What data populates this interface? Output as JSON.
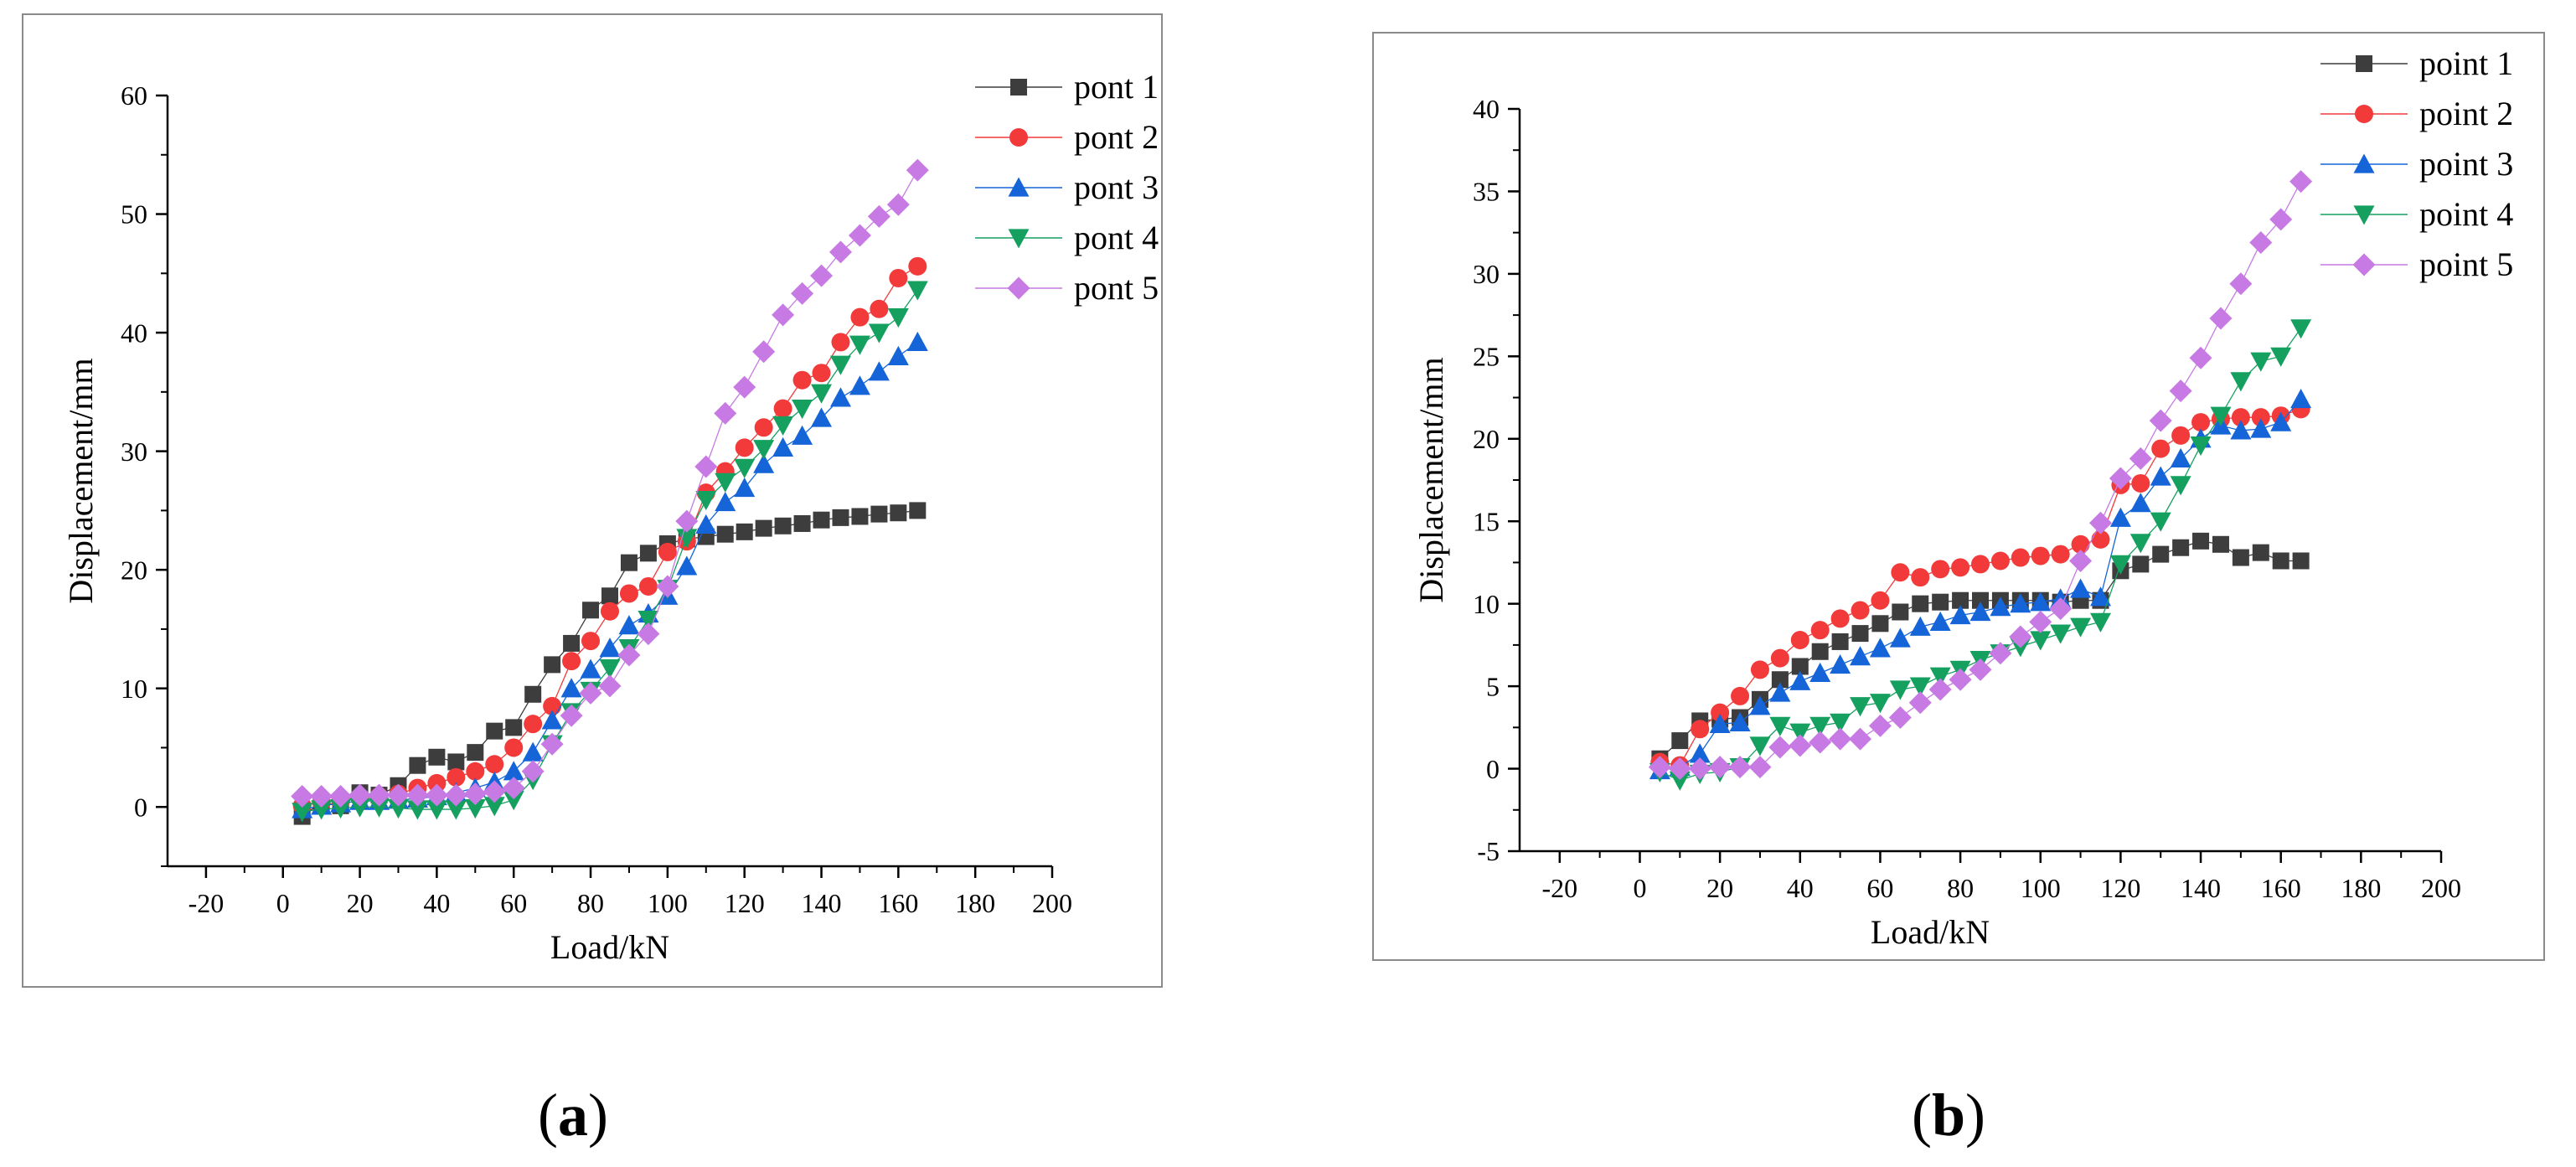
{
  "captions": {
    "a_open": "(",
    "a_letter": "a",
    "a_close": ")",
    "b_open": "(",
    "b_letter": "b",
    "b_close": ")"
  },
  "colors": {
    "point1": "#3d3d3d",
    "point2": "#f23a3a",
    "point3": "#1565d8",
    "point4": "#15a060",
    "point5": "#c77ae3"
  },
  "chart_data": [
    {
      "type": "scatter",
      "id": "a",
      "title": "",
      "xlabel": "Load/kN",
      "ylabel": "Displacement/mm",
      "xlim": [
        -30,
        200
      ],
      "ylim": [
        -5,
        60
      ],
      "xticks": [
        -20,
        0,
        20,
        40,
        60,
        80,
        100,
        120,
        140,
        160,
        180,
        200
      ],
      "yticks": [
        0,
        10,
        20,
        30,
        40,
        50,
        60
      ],
      "legend_position": "top-right",
      "x": [
        5,
        10,
        15,
        20,
        25,
        30,
        35,
        40,
        45,
        50,
        55,
        60,
        65,
        70,
        75,
        80,
        85,
        90,
        95,
        100,
        105,
        110,
        115,
        120,
        125,
        130,
        135,
        140,
        145,
        150,
        155,
        160,
        165
      ],
      "series": [
        {
          "name": "pont 1",
          "marker": "square",
          "values": [
            -0.8,
            0.4,
            0.1,
            1.2,
            1.0,
            1.8,
            3.5,
            4.2,
            3.8,
            4.6,
            6.4,
            6.7,
            9.5,
            12.0,
            13.8,
            16.6,
            17.8,
            20.6,
            21.4,
            22.2,
            22.6,
            22.8,
            23.0,
            23.2,
            23.5,
            23.7,
            23.9,
            24.2,
            24.4,
            24.5,
            24.7,
            24.8,
            25.0
          ]
        },
        {
          "name": "pont 2",
          "marker": "circle",
          "values": [
            0.1,
            0.4,
            0.5,
            0.8,
            0.9,
            1.1,
            1.6,
            2.0,
            2.5,
            3.0,
            3.6,
            5.0,
            7.0,
            8.5,
            12.3,
            14.0,
            16.5,
            18.0,
            18.6,
            21.5,
            22.4,
            26.5,
            28.3,
            30.3,
            32.0,
            33.6,
            36.0,
            36.6,
            39.2,
            41.3,
            42.0,
            44.6,
            45.6
          ]
        },
        {
          "name": "pont 3",
          "marker": "triangle-up",
          "values": [
            -0.2,
            0.1,
            0.3,
            0.5,
            0.5,
            0.6,
            0.7,
            0.9,
            1.2,
            1.6,
            2.1,
            3.0,
            4.6,
            7.3,
            10.0,
            11.6,
            13.4,
            15.3,
            16.3,
            17.8,
            20.3,
            23.8,
            25.7,
            26.9,
            28.9,
            30.3,
            31.3,
            32.8,
            34.5,
            35.5,
            36.7,
            38.0,
            39.2
          ]
        },
        {
          "name": "pont 4",
          "marker": "triangle-down",
          "values": [
            -0.4,
            -0.2,
            -0.1,
            0.0,
            0.0,
            -0.1,
            -0.2,
            -0.2,
            -0.2,
            -0.1,
            0.1,
            0.6,
            2.3,
            5.3,
            8.0,
            9.8,
            11.7,
            13.4,
            15.8,
            18.4,
            22.7,
            25.9,
            27.4,
            28.6,
            30.2,
            32.2,
            33.6,
            34.9,
            37.3,
            39.0,
            40.0,
            41.3,
            43.6
          ]
        },
        {
          "name": "pont 5",
          "marker": "diamond",
          "values": [
            0.9,
            0.9,
            0.9,
            1.0,
            1.0,
            1.0,
            1.0,
            1.0,
            1.0,
            1.1,
            1.3,
            1.6,
            3.0,
            5.3,
            7.7,
            9.6,
            10.2,
            12.8,
            14.6,
            18.6,
            24.1,
            28.7,
            33.2,
            35.4,
            38.4,
            41.5,
            43.3,
            44.8,
            46.8,
            48.2,
            49.8,
            50.8,
            53.7
          ]
        }
      ]
    },
    {
      "type": "scatter",
      "id": "b",
      "title": "",
      "xlabel": "Load/kN",
      "ylabel": "Displacement/mm",
      "xlim": [
        -30,
        200
      ],
      "ylim": [
        -5,
        40
      ],
      "xticks": [
        -20,
        0,
        20,
        40,
        60,
        80,
        100,
        120,
        140,
        160,
        180,
        200
      ],
      "yticks": [
        -5,
        0,
        5,
        10,
        15,
        20,
        25,
        30,
        35,
        40
      ],
      "legend_position": "top-right",
      "x": [
        5,
        10,
        15,
        20,
        25,
        30,
        35,
        40,
        45,
        50,
        55,
        60,
        65,
        70,
        75,
        80,
        85,
        90,
        95,
        100,
        105,
        110,
        115,
        120,
        125,
        130,
        135,
        140,
        145,
        150,
        155,
        160,
        165
      ],
      "series": [
        {
          "name": "point 1",
          "marker": "square",
          "values": [
            0.6,
            1.7,
            2.9,
            3.0,
            3.1,
            4.2,
            5.4,
            6.2,
            7.1,
            7.7,
            8.2,
            8.8,
            9.5,
            10.0,
            10.1,
            10.2,
            10.2,
            10.2,
            10.2,
            10.2,
            10.1,
            10.2,
            10.2,
            12.0,
            12.4,
            13.0,
            13.4,
            13.8,
            13.6,
            12.8,
            13.1,
            12.6,
            12.6
          ]
        },
        {
          "name": "point 2",
          "marker": "circle",
          "values": [
            0.4,
            0.2,
            2.4,
            3.4,
            4.4,
            6.0,
            6.7,
            7.8,
            8.4,
            9.1,
            9.6,
            10.2,
            11.9,
            11.6,
            12.1,
            12.2,
            12.4,
            12.6,
            12.8,
            12.9,
            13.0,
            13.6,
            13.9,
            17.2,
            17.3,
            19.4,
            20.2,
            21.0,
            21.2,
            21.3,
            21.3,
            21.4,
            21.8
          ]
        },
        {
          "name": "point 3",
          "marker": "triangle-up",
          "values": [
            -0.1,
            0.1,
            0.9,
            2.7,
            2.8,
            3.8,
            4.6,
            5.3,
            5.8,
            6.3,
            6.8,
            7.3,
            7.9,
            8.6,
            8.9,
            9.3,
            9.5,
            9.8,
            10.0,
            10.1,
            10.3,
            10.9,
            10.4,
            15.2,
            16.1,
            17.7,
            18.8,
            20.0,
            20.8,
            20.5,
            20.6,
            21.0,
            22.4
          ]
        },
        {
          "name": "point 4",
          "marker": "triangle-down",
          "values": [
            -0.2,
            -0.7,
            -0.3,
            -0.2,
            0.1,
            1.4,
            2.6,
            2.2,
            2.6,
            2.8,
            3.8,
            4.0,
            4.8,
            5.0,
            5.6,
            6.0,
            6.6,
            7.0,
            7.4,
            7.8,
            8.2,
            8.6,
            8.9,
            12.4,
            13.7,
            15.0,
            17.2,
            19.6,
            21.4,
            23.5,
            24.7,
            25.0,
            26.7
          ]
        },
        {
          "name": "point 5",
          "marker": "diamond",
          "values": [
            0.1,
            0.0,
            0.0,
            0.1,
            0.1,
            0.1,
            1.3,
            1.4,
            1.6,
            1.8,
            1.8,
            2.6,
            3.1,
            4.0,
            4.8,
            5.4,
            6.0,
            7.0,
            8.0,
            8.9,
            9.7,
            12.6,
            14.9,
            17.6,
            18.8,
            21.1,
            22.9,
            24.9,
            27.3,
            29.4,
            31.9,
            33.3,
            35.6
          ]
        }
      ]
    }
  ]
}
